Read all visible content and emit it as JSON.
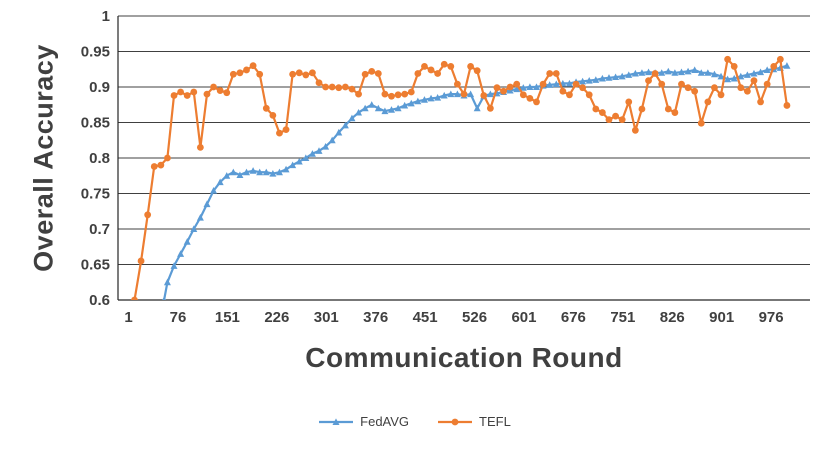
{
  "chart_data": {
    "type": "line",
    "title": "",
    "xlabel": "Communication Round",
    "ylabel": "Overall Accuracy",
    "xlim": [
      -15,
      1035
    ],
    "ylim": [
      0.6,
      1.0
    ],
    "x_ticks": [
      1,
      76,
      151,
      226,
      301,
      376,
      451,
      526,
      601,
      676,
      751,
      826,
      901,
      976
    ],
    "y_ticks": [
      0.6,
      0.65,
      0.7,
      0.75,
      0.8,
      0.85,
      0.9,
      0.95,
      1.0
    ],
    "y_tick_labels": [
      "0.6",
      "0.65",
      "0.7",
      "0.75",
      "0.8",
      "0.85",
      "0.9",
      "0.95",
      "1"
    ],
    "grid": "horizontal",
    "grid_color": "#404040",
    "axis_color": "#262626",
    "legend_position": "bottom",
    "series": [
      {
        "name": "FedAVG",
        "color": "#5B9BD5",
        "marker": "triangle",
        "x": [
          50,
          55,
          60,
          70,
          80,
          90,
          100,
          110,
          120,
          130,
          140,
          150,
          160,
          170,
          180,
          190,
          200,
          210,
          220,
          230,
          240,
          250,
          260,
          270,
          280,
          290,
          300,
          310,
          320,
          330,
          340,
          350,
          360,
          370,
          380,
          390,
          400,
          410,
          420,
          430,
          440,
          450,
          460,
          470,
          480,
          490,
          500,
          510,
          520,
          530,
          540,
          550,
          560,
          570,
          580,
          590,
          600,
          610,
          620,
          630,
          640,
          650,
          660,
          670,
          680,
          690,
          700,
          710,
          720,
          730,
          740,
          750,
          760,
          770,
          780,
          790,
          800,
          810,
          820,
          830,
          840,
          850,
          860,
          870,
          880,
          890,
          900,
          910,
          920,
          930,
          940,
          950,
          960,
          970,
          980,
          990,
          1000
        ],
        "y": [
          0.555,
          0.6,
          0.625,
          0.648,
          0.665,
          0.682,
          0.7,
          0.716,
          0.735,
          0.754,
          0.766,
          0.775,
          0.78,
          0.776,
          0.78,
          0.782,
          0.78,
          0.78,
          0.778,
          0.78,
          0.784,
          0.79,
          0.795,
          0.8,
          0.806,
          0.81,
          0.816,
          0.825,
          0.836,
          0.846,
          0.856,
          0.864,
          0.87,
          0.875,
          0.87,
          0.866,
          0.868,
          0.87,
          0.874,
          0.877,
          0.88,
          0.882,
          0.884,
          0.885,
          0.888,
          0.89,
          0.89,
          0.888,
          0.89,
          0.87,
          0.887,
          0.89,
          0.891,
          0.893,
          0.895,
          0.897,
          0.899,
          0.9,
          0.9,
          0.902,
          0.903,
          0.904,
          0.905,
          0.905,
          0.907,
          0.908,
          0.909,
          0.91,
          0.912,
          0.913,
          0.914,
          0.915,
          0.917,
          0.919,
          0.92,
          0.921,
          0.92,
          0.92,
          0.922,
          0.92,
          0.921,
          0.922,
          0.924,
          0.92,
          0.92,
          0.918,
          0.915,
          0.911,
          0.912,
          0.915,
          0.917,
          0.919,
          0.921,
          0.924,
          0.925,
          0.927,
          0.93
        ]
      },
      {
        "name": "TEFL",
        "color": "#ED7D31",
        "marker": "circle",
        "x": [
          5,
          10,
          20,
          30,
          40,
          50,
          60,
          70,
          80,
          90,
          100,
          110,
          120,
          130,
          140,
          150,
          160,
          170,
          180,
          190,
          200,
          210,
          220,
          230,
          240,
          250,
          260,
          270,
          280,
          290,
          300,
          310,
          320,
          330,
          340,
          350,
          360,
          370,
          380,
          390,
          400,
          410,
          420,
          430,
          440,
          450,
          460,
          470,
          480,
          490,
          500,
          510,
          520,
          530,
          540,
          550,
          560,
          570,
          580,
          590,
          600,
          610,
          620,
          630,
          640,
          650,
          660,
          670,
          680,
          690,
          700,
          710,
          720,
          730,
          740,
          750,
          760,
          770,
          780,
          790,
          800,
          810,
          820,
          830,
          840,
          850,
          860,
          870,
          880,
          890,
          900,
          910,
          920,
          930,
          940,
          950,
          960,
          970,
          980,
          990,
          1000
        ],
        "y": [
          0.55,
          0.6,
          0.655,
          0.72,
          0.788,
          0.79,
          0.8,
          0.888,
          0.893,
          0.888,
          0.893,
          0.815,
          0.89,
          0.9,
          0.895,
          0.892,
          0.918,
          0.92,
          0.924,
          0.93,
          0.918,
          0.87,
          0.86,
          0.835,
          0.84,
          0.918,
          0.92,
          0.917,
          0.92,
          0.906,
          0.9,
          0.9,
          0.899,
          0.9,
          0.897,
          0.89,
          0.918,
          0.922,
          0.919,
          0.89,
          0.887,
          0.889,
          0.89,
          0.893,
          0.919,
          0.929,
          0.924,
          0.919,
          0.932,
          0.929,
          0.904,
          0.89,
          0.929,
          0.923,
          0.888,
          0.87,
          0.899,
          0.894,
          0.9,
          0.904,
          0.889,
          0.884,
          0.879,
          0.904,
          0.919,
          0.919,
          0.894,
          0.889,
          0.904,
          0.899,
          0.889,
          0.869,
          0.864,
          0.854,
          0.859,
          0.854,
          0.879,
          0.839,
          0.869,
          0.909,
          0.919,
          0.904,
          0.869,
          0.864,
          0.904,
          0.899,
          0.894,
          0.849,
          0.879,
          0.899,
          0.889,
          0.939,
          0.929,
          0.899,
          0.894,
          0.909,
          0.879,
          0.904,
          0.929,
          0.939,
          0.874
        ]
      }
    ]
  },
  "legend": {
    "items": [
      {
        "label": "FedAVG"
      },
      {
        "label": "TEFL"
      }
    ]
  }
}
